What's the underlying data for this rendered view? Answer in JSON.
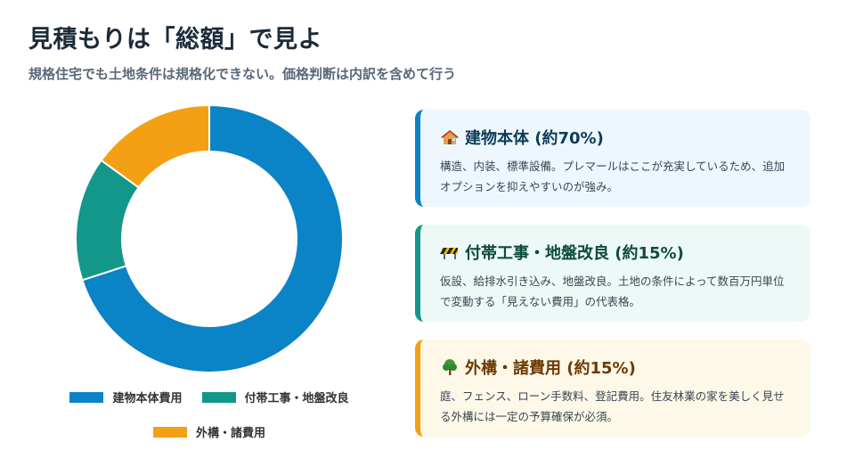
{
  "header": {
    "title": "見積もりは「総額」で見よ",
    "subtitle": "規格住宅でも土地条件は規格化できない。価格判断は内訳を含めて行う"
  },
  "chart_data": {
    "type": "pie",
    "categories": [
      "建物本体費用",
      "付帯工事・地盤改良",
      "外構・諸費用"
    ],
    "values": [
      70,
      15,
      15
    ],
    "colors": [
      "#0a84c6",
      "#13978a",
      "#f4a014"
    ],
    "donut": true,
    "legend_position": "bottom"
  },
  "cards": [
    {
      "icon": "house-icon",
      "title": "建物本体 (約70%)",
      "body": "構造、内装、標準設備。プレマールはここが充実しているため、追加オプションを抑えやすいのが強み。",
      "accent": "#0a84c6",
      "bg": "#eef7fd",
      "title_color": "#0d3c5a"
    },
    {
      "icon": "construction-barrier-icon",
      "title": "付帯工事・地盤改良 (約15%)",
      "body": "仮設、給排水引き込み、地盤改良。土地の条件によって数百万円単位で変動する「見えない費用」の代表格。",
      "accent": "#13978a",
      "bg": "#edf9f6",
      "title_color": "#0d4a3e"
    },
    {
      "icon": "tree-icon",
      "title": "外構・諸費用 (約15%)",
      "body": "庭、フェンス、ローン手数料、登記費用。住友林業の家を美しく見せる外構には一定の予算確保が必須。",
      "accent": "#f4a014",
      "bg": "#fdf8e7",
      "title_color": "#6b3a06"
    }
  ]
}
